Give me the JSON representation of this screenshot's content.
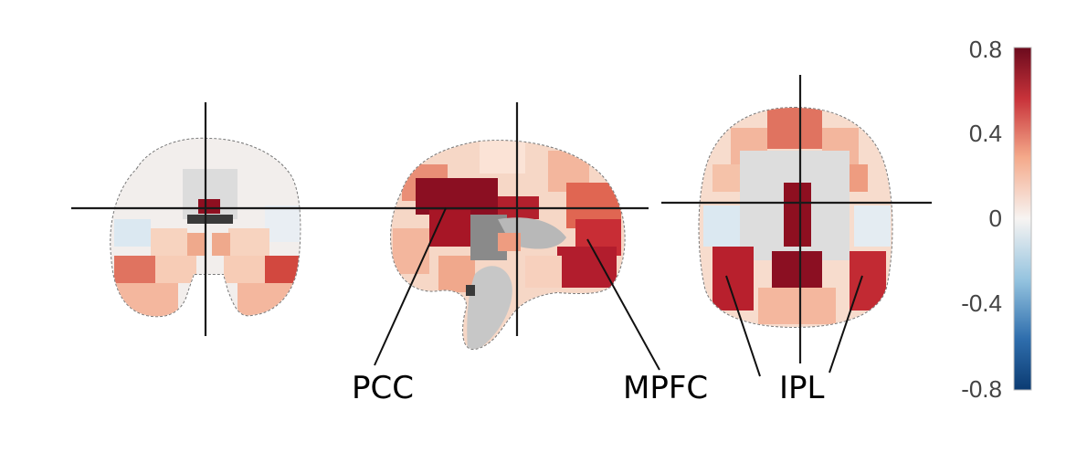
{
  "figure": {
    "labels": {
      "pcc": "PCC",
      "mpfc": "MPFC",
      "ipl": "IPL"
    },
    "colorbar": {
      "ticks": [
        "0.8",
        "0.4",
        "0",
        "-0.4",
        "-0.8"
      ],
      "range": [
        -0.8,
        0.8
      ],
      "colormap": "RdBu_r"
    },
    "colors": {
      "max": "#7a0a1c",
      "high": "#b8232f",
      "mid_high": "#e47b68",
      "low_pos": "#f6c9b1",
      "neutral": "#f4f0ee",
      "low_neg": "#d6e6f1",
      "min": "#0d3f78",
      "brain_gray": "#cfcfcf"
    }
  }
}
